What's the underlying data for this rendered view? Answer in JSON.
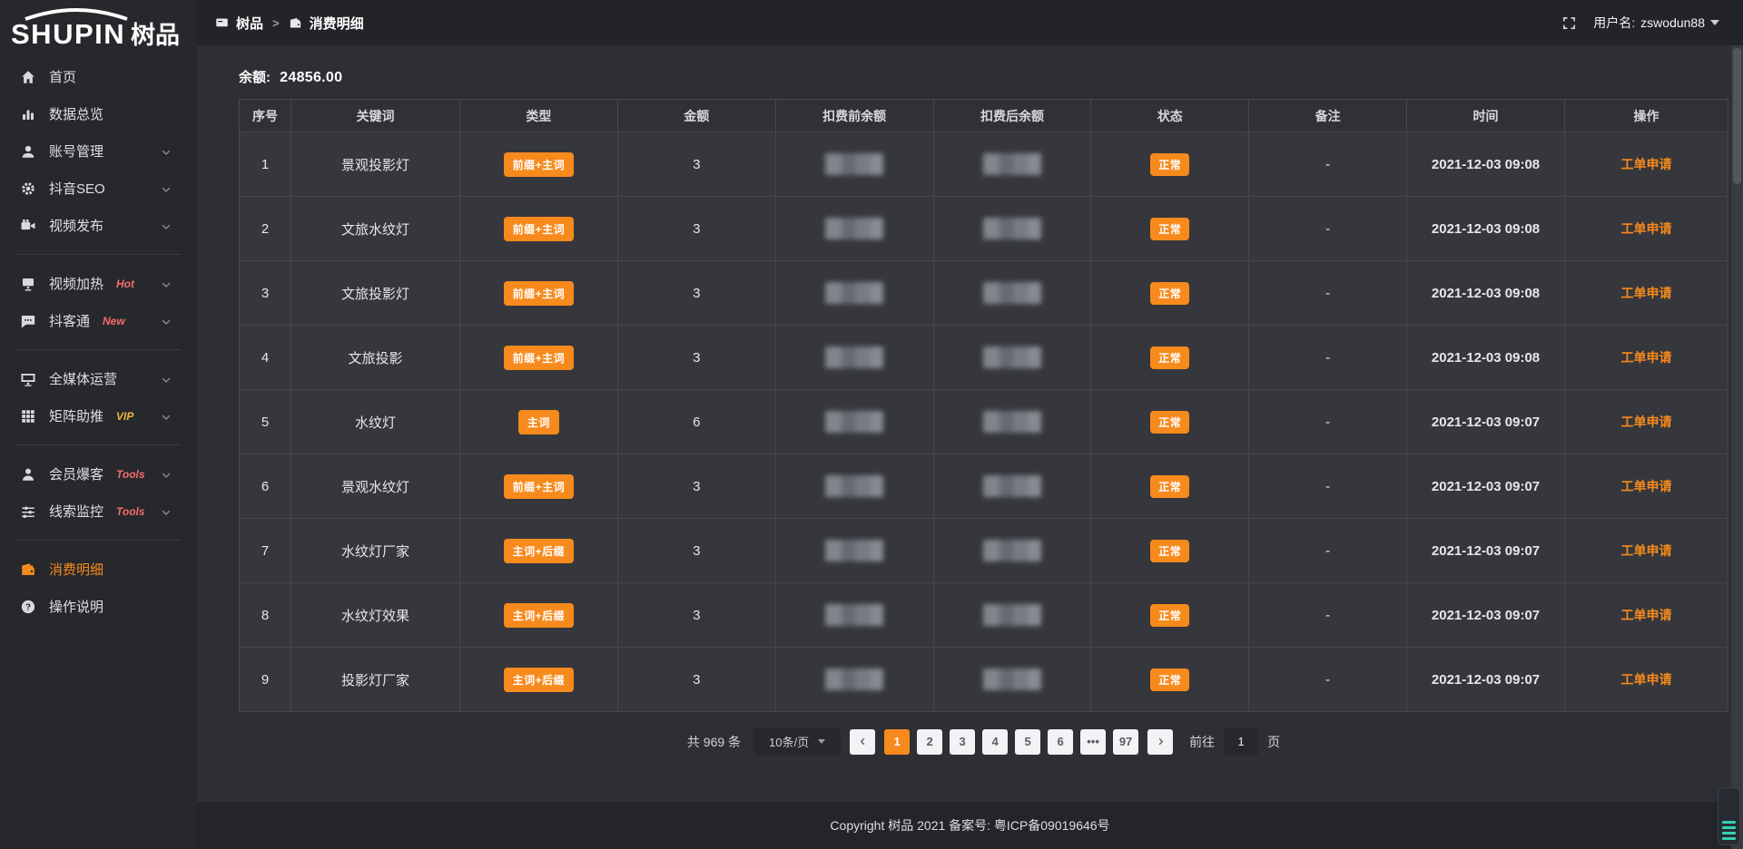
{
  "app": {
    "logo_en": "SHUPIN",
    "logo_cn": "树品"
  },
  "topbar": {
    "breadcrumb": [
      {
        "label": "树品",
        "icon": "screen-icon"
      },
      {
        "label": "消费明细",
        "icon": "wallet-icon"
      }
    ],
    "separator": ">",
    "fullscreen_icon": "fullscreen-icon",
    "username_label": "用户名:",
    "username": "zswodun88"
  },
  "sidebar": {
    "items": [
      {
        "label": "首页",
        "icon": "home-icon"
      },
      {
        "label": "数据总览",
        "icon": "chart-icon"
      },
      {
        "label": "账号管理",
        "icon": "user-icon",
        "chevron": true
      },
      {
        "label": "抖音SEO",
        "icon": "gear-icon",
        "chevron": true
      },
      {
        "label": "视频发布",
        "icon": "camera-icon",
        "chevron": true
      },
      {
        "divider": true
      },
      {
        "label": "视频加热",
        "tag": "Hot",
        "tag_color": "#f56c6c",
        "icon": "heat-icon",
        "chevron": true
      },
      {
        "label": "抖客通",
        "tag": "New",
        "tag_color": "#f56c6c",
        "icon": "chat-icon",
        "chevron": true
      },
      {
        "divider": true
      },
      {
        "label": "全媒体运营",
        "icon": "monitor-icon",
        "chevron": true
      },
      {
        "label": "矩阵助推",
        "tag": "VIP",
        "tag_color": "#f0b33c",
        "icon": "grid-icon",
        "chevron": true
      },
      {
        "divider": true
      },
      {
        "label": "会员爆客",
        "tag": "Tools",
        "tag_color": "#f56c6c",
        "icon": "member-icon",
        "chevron": true
      },
      {
        "label": "线索监控",
        "tag": "Tools",
        "tag_color": "#f56c6c",
        "icon": "filter-icon",
        "chevron": true
      },
      {
        "divider": true
      },
      {
        "label": "消费明细",
        "icon": "wallet-icon",
        "active": true
      },
      {
        "label": "操作说明",
        "icon": "help-icon"
      }
    ]
  },
  "balance": {
    "label": "余额:",
    "value": "24856.00"
  },
  "table": {
    "columns": [
      "序号",
      "关键词",
      "类型",
      "金额",
      "扣费前余额",
      "扣费后余额",
      "状态",
      "备注",
      "时间",
      "操作"
    ],
    "rows": [
      {
        "index": "1",
        "keyword": "景观投影灯",
        "type": "前缀+主词",
        "amount": "3",
        "before_masked": true,
        "after_masked": true,
        "status": "正常",
        "note": "-",
        "time": "2021-12-03 09:08",
        "action": "工单申请"
      },
      {
        "index": "2",
        "keyword": "文旅水纹灯",
        "type": "前缀+主词",
        "amount": "3",
        "before_masked": true,
        "after_masked": true,
        "status": "正常",
        "note": "-",
        "time": "2021-12-03 09:08",
        "action": "工单申请"
      },
      {
        "index": "3",
        "keyword": "文旅投影灯",
        "type": "前缀+主词",
        "amount": "3",
        "before_masked": true,
        "after_masked": true,
        "status": "正常",
        "note": "-",
        "time": "2021-12-03 09:08",
        "action": "工单申请"
      },
      {
        "index": "4",
        "keyword": "文旅投影",
        "type": "前缀+主词",
        "amount": "3",
        "before_masked": true,
        "after_masked": true,
        "status": "正常",
        "note": "-",
        "time": "2021-12-03 09:08",
        "action": "工单申请"
      },
      {
        "index": "5",
        "keyword": "水纹灯",
        "type": "主词",
        "amount": "6",
        "before_masked": true,
        "after_masked": true,
        "status": "正常",
        "note": "-",
        "time": "2021-12-03 09:07",
        "action": "工单申请"
      },
      {
        "index": "6",
        "keyword": "景观水纹灯",
        "type": "前缀+主词",
        "amount": "3",
        "before_masked": true,
        "after_masked": true,
        "status": "正常",
        "note": "-",
        "time": "2021-12-03 09:07",
        "action": "工单申请"
      },
      {
        "index": "7",
        "keyword": "水纹灯厂家",
        "type": "主词+后缀",
        "amount": "3",
        "before_masked": true,
        "after_masked": true,
        "status": "正常",
        "note": "-",
        "time": "2021-12-03 09:07",
        "action": "工单申请"
      },
      {
        "index": "8",
        "keyword": "水纹灯效果",
        "type": "主词+后缀",
        "amount": "3",
        "before_masked": true,
        "after_masked": true,
        "status": "正常",
        "note": "-",
        "time": "2021-12-03 09:07",
        "action": "工单申请"
      },
      {
        "index": "9",
        "keyword": "投影灯厂家",
        "type": "主词+后缀",
        "amount": "3",
        "before_masked": true,
        "after_masked": true,
        "status": "正常",
        "note": "-",
        "time": "2021-12-03 09:07",
        "action": "工单申请"
      }
    ]
  },
  "pagination": {
    "total_label": "共 969 条",
    "page_size": "10条/页",
    "prev_icon": "chevron-left-icon",
    "next_icon": "chevron-right-icon",
    "pages": [
      "1",
      "2",
      "3",
      "4",
      "5",
      "6",
      "•••",
      "97"
    ],
    "active_page": "1",
    "goto_label": "前往",
    "goto_value": "1",
    "goto_suffix": "页"
  },
  "footer": {
    "copyright": "Copyright 树品 2021 备案号: 粤ICP备09019646号"
  },
  "colors": {
    "accent": "#f78a1d",
    "danger": "#f56c6c",
    "vip": "#f0b33c",
    "status_ok": "#f78a1d"
  }
}
